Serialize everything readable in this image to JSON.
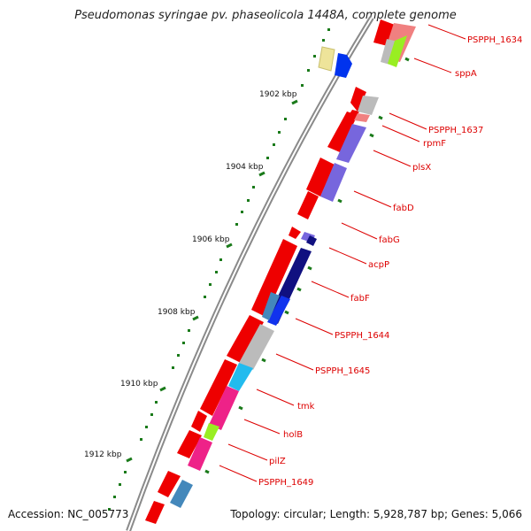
{
  "title": "Pseudomonas syringae pv. phaseolicola 1448A, complete genome",
  "accession_text": "Accession: NC_005773",
  "topology_text": "Topology: circular; Length: 5,928,787 bp; Genes: 5,066",
  "kbp_labels": [
    "1902 kbp",
    "1904 kbp",
    "1906 kbp",
    "1908 kbp",
    "1910 kbp",
    "1912 kbp"
  ],
  "gene_labels": [
    "PSPPH_1634",
    "sppA",
    "PSPPH_1637",
    "rpmF",
    "plsX",
    "fabD",
    "fabG",
    "acpP",
    "fabF",
    "PSPPH_1644",
    "PSPPH_1645",
    "tmk",
    "holB",
    "pilZ",
    "PSPPH_1649"
  ],
  "colors": {
    "label_red": "#dd0000",
    "tick_green": "#1a7a1a",
    "backbone": "#8a8a8a",
    "gene_red": "#ee0000",
    "purple": "#7766dd",
    "navy": "#101080",
    "gray": "#bbbbbb",
    "cyan": "#22bbee",
    "magenta": "#ee2288",
    "lime": "#99ee22",
    "steel": "#4488bb"
  }
}
